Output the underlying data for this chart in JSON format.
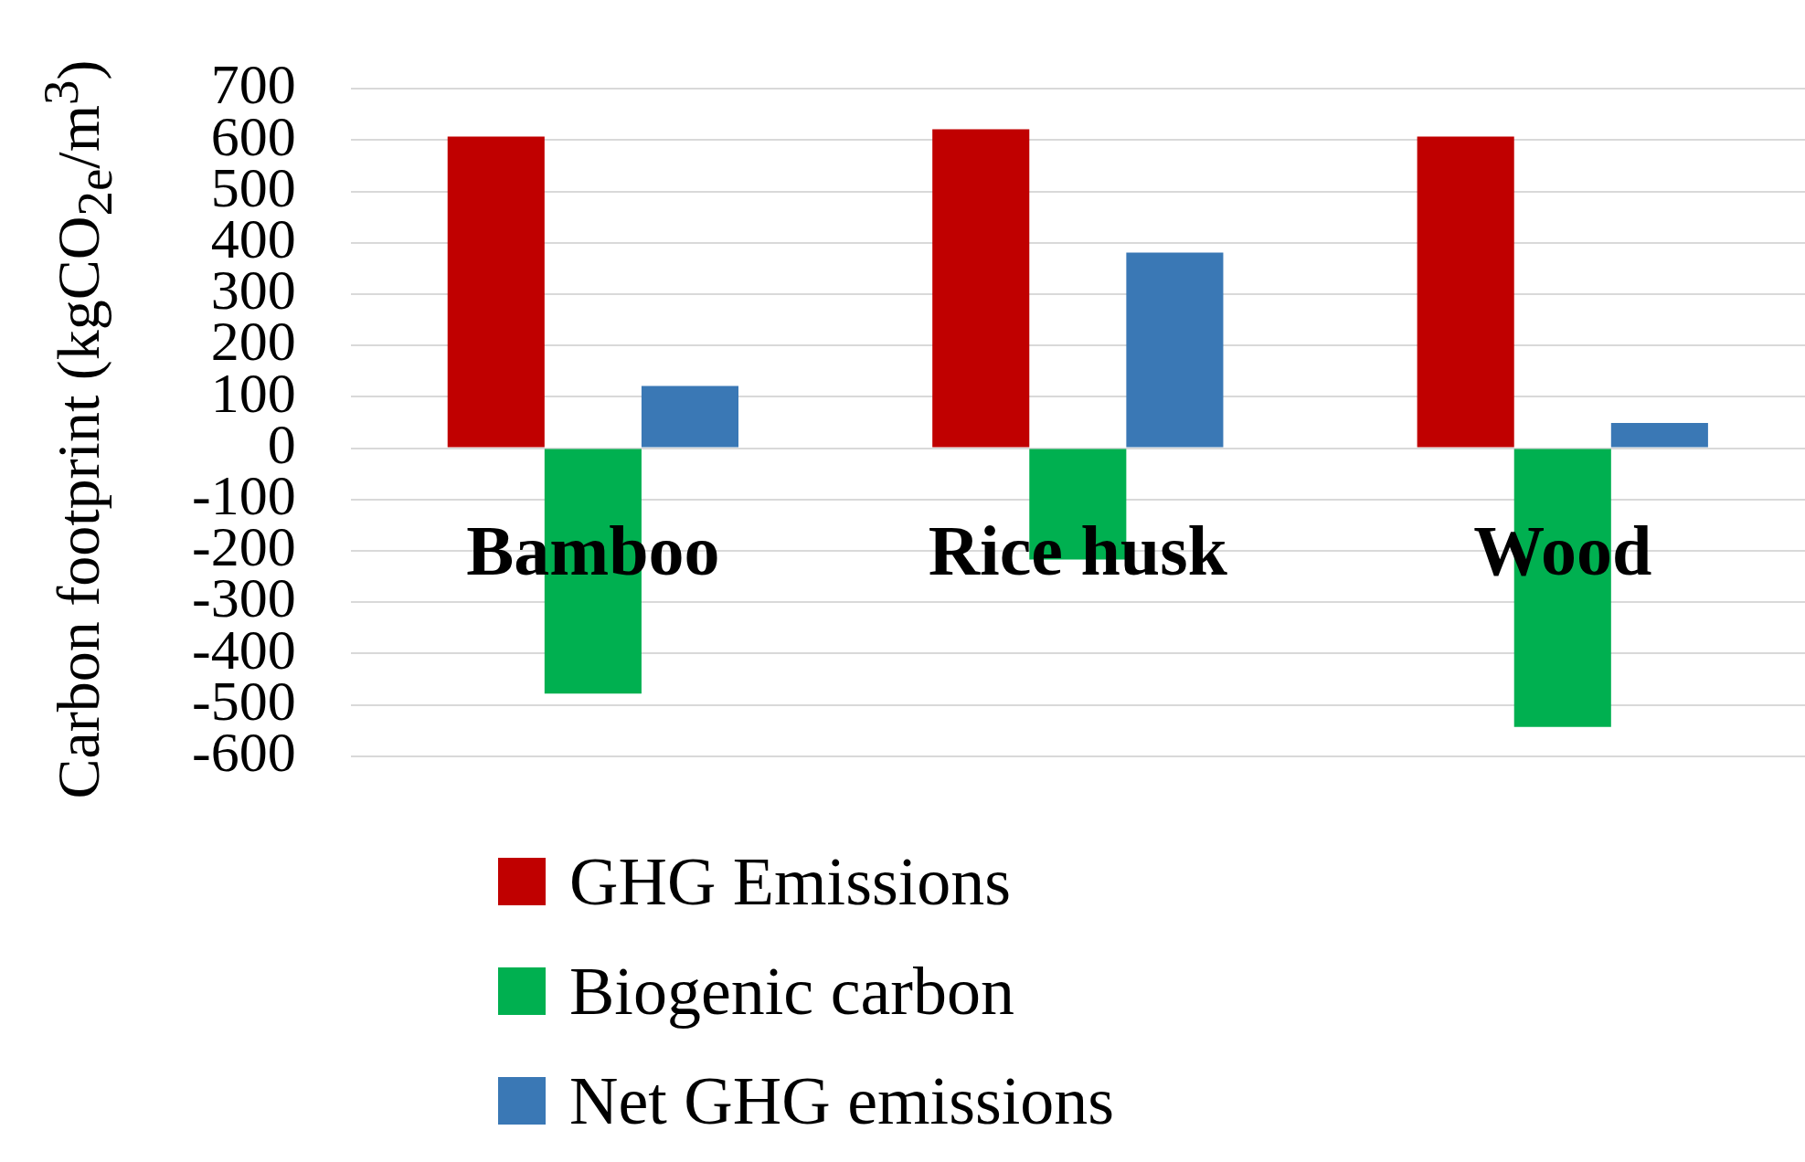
{
  "chart_data": {
    "type": "bar",
    "ylabel": "Carbon footprint (kgCO$_{2e}$/m$^{3}$)",
    "categories": [
      "Bamboo",
      "Rice husk",
      "Wood"
    ],
    "series": [
      {
        "name": "GHG Emissions",
        "color": "#c00000",
        "values": [
          607,
          621,
          607
        ]
      },
      {
        "name": "Biogenic carbon",
        "color": "#00b050",
        "values": [
          -478,
          -217,
          -543
        ]
      },
      {
        "name": "Net GHG emissions",
        "color": "#3a78b5",
        "values": [
          121,
          381,
          49
        ]
      }
    ],
    "ylim": [
      -600,
      700
    ],
    "yticks": [
      -600,
      -500,
      -400,
      -300,
      -200,
      -100,
      0,
      100,
      200,
      300,
      400,
      500,
      600,
      700
    ],
    "grid": "y",
    "legend": "bottom"
  }
}
